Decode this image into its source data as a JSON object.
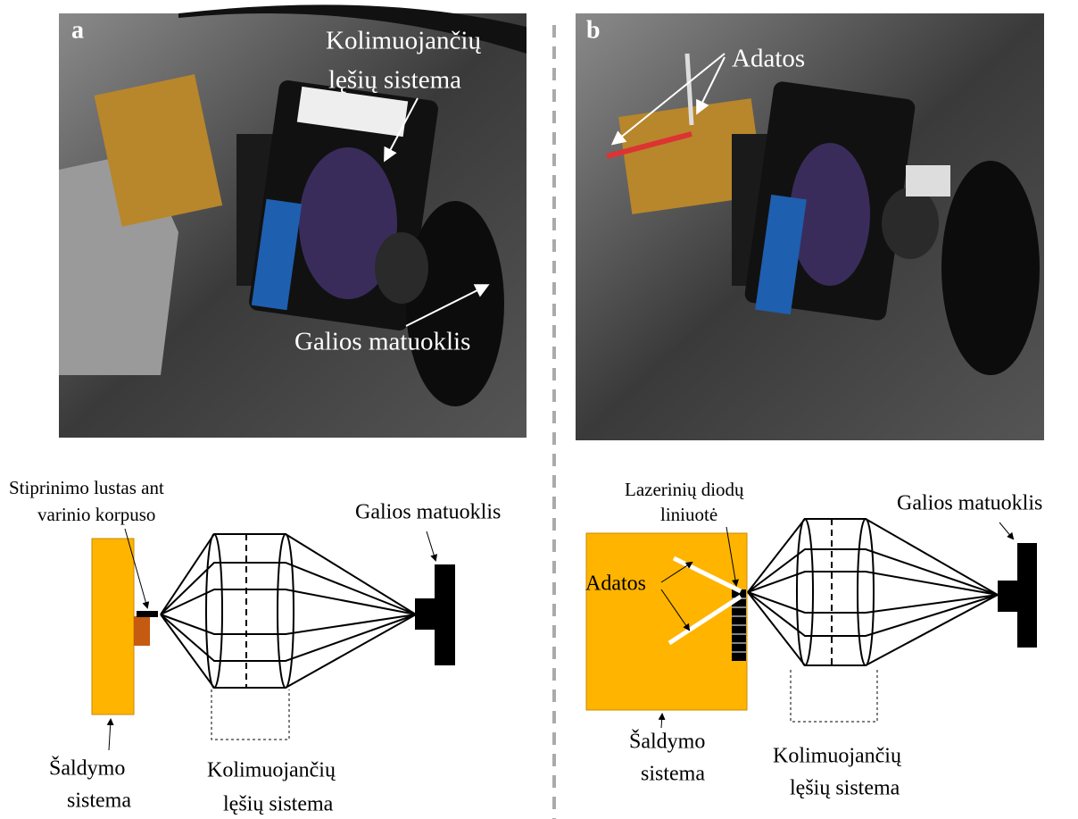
{
  "panels": [
    {
      "label": "a",
      "photo_annotations": {
        "collimator": [
          "Kolimuojančių",
          "lęšių sistema"
        ],
        "power_meter": "Galios matuoklis"
      },
      "diagram": {
        "chip": [
          "Stiprinimo lustas ant",
          "varinio korpuso"
        ],
        "power_meter": "Galios matuoklis",
        "cooling": [
          "Šaldymo",
          "sistema"
        ],
        "collimator": [
          "Kolimuojančių",
          "lęšių sistema"
        ]
      }
    },
    {
      "label": "b",
      "photo_annotations": {
        "needles": "Adatos"
      },
      "diagram": {
        "laser_bar": [
          "Lazerinių diodų",
          "liniuotė"
        ],
        "power_meter": "Galios matuoklis",
        "needles": "Adatos",
        "cooling": [
          "Šaldymo",
          "sistema"
        ],
        "collimator": [
          "Kolimuojančių",
          "lęšių sistema"
        ]
      }
    }
  ]
}
